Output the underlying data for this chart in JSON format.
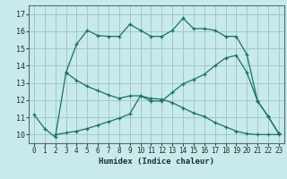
{
  "title": "",
  "xlabel": "Humidex (Indice chaleur)",
  "background_color": "#c8eaea",
  "grid_color": "#a0c8c8",
  "line_color": "#1a7068",
  "xlim": [
    -0.5,
    23.5
  ],
  "ylim": [
    9.5,
    17.5
  ],
  "yticks": [
    10,
    11,
    12,
    13,
    14,
    15,
    16,
    17
  ],
  "xticks": [
    0,
    1,
    2,
    3,
    4,
    5,
    6,
    7,
    8,
    9,
    10,
    11,
    12,
    13,
    14,
    15,
    16,
    17,
    18,
    19,
    20,
    21,
    22,
    23
  ],
  "line1_x": [
    0,
    1,
    2,
    3,
    4,
    5,
    6,
    7,
    8,
    9,
    10,
    11,
    12,
    13,
    14,
    15,
    16,
    17,
    18,
    19,
    20,
    21,
    22,
    23
  ],
  "line1_y": [
    11.15,
    10.35,
    9.85,
    13.6,
    15.25,
    16.05,
    15.75,
    15.7,
    15.7,
    16.4,
    16.05,
    15.7,
    15.7,
    16.05,
    16.75,
    16.15,
    16.15,
    16.05,
    15.7,
    15.7,
    14.65,
    11.95,
    11.05,
    10.05
  ],
  "line2_x": [
    3,
    4,
    5,
    6,
    7,
    8,
    9,
    10,
    11,
    12,
    13,
    14,
    15,
    16,
    17,
    18,
    19,
    20,
    21,
    22,
    23
  ],
  "line2_y": [
    13.6,
    13.15,
    12.8,
    12.55,
    12.3,
    12.1,
    12.25,
    12.25,
    12.1,
    12.05,
    11.85,
    11.55,
    11.25,
    11.05,
    10.7,
    10.45,
    10.2,
    10.05,
    10.0,
    10.0,
    10.0
  ],
  "line3_x": [
    2,
    3,
    4,
    5,
    6,
    7,
    8,
    9,
    10,
    11,
    12,
    13,
    14,
    15,
    16,
    17,
    18,
    19,
    20,
    21,
    22,
    23
  ],
  "line3_y": [
    10.0,
    10.1,
    10.2,
    10.35,
    10.55,
    10.75,
    10.95,
    11.2,
    12.25,
    11.95,
    11.95,
    12.45,
    12.95,
    13.2,
    13.5,
    14.0,
    14.45,
    14.6,
    13.6,
    11.95,
    11.05,
    10.05
  ]
}
